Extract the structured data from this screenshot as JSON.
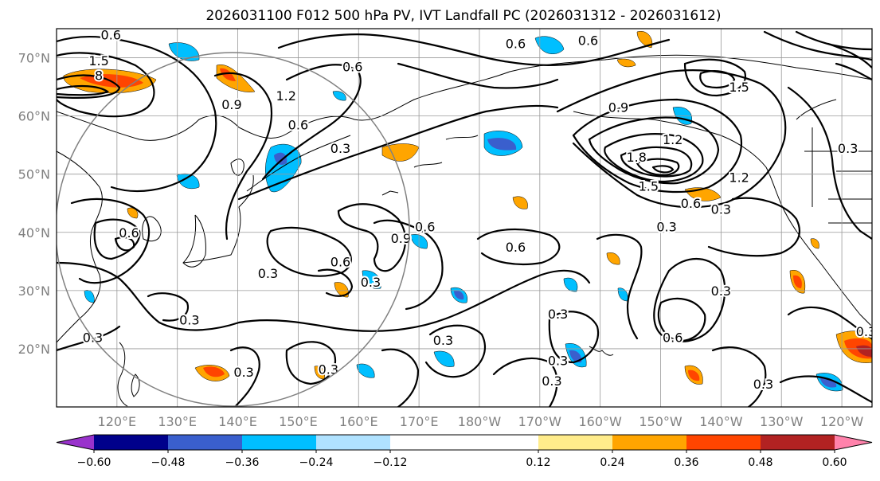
{
  "chart_data": {
    "type": "contour-map",
    "title": "2026031100 F012 500 hPa PV, IVT Landfall PC (2026031312 - 2026031612)",
    "lat_ticks": [
      "70°N",
      "60°N",
      "50°N",
      "40°N",
      "30°N",
      "20°N"
    ],
    "lat_values": [
      70,
      60,
      50,
      40,
      30,
      20
    ],
    "lon_ticks": [
      "120°E",
      "130°E",
      "140°E",
      "150°E",
      "160°E",
      "170°E",
      "180°W",
      "170°W",
      "160°W",
      "150°W",
      "140°W",
      "130°W",
      "120°W"
    ],
    "lon_values": [
      120,
      130,
      140,
      150,
      160,
      170,
      180,
      190,
      200,
      210,
      220,
      230,
      240
    ],
    "extent": {
      "lon": [
        110,
        245
      ],
      "lat": [
        10,
        75
      ]
    },
    "colorbar": {
      "ticks": [
        "−0.60",
        "−0.48",
        "−0.36",
        "−0.24",
        "−0.12",
        "0.12",
        "0.24",
        "0.36",
        "0.48",
        "0.60"
      ],
      "boundaries": [
        -0.6,
        -0.48,
        -0.36,
        -0.24,
        -0.12,
        0.12,
        0.24,
        0.36,
        0.48,
        0.6
      ],
      "colors": [
        "#9932cc",
        "#00008b",
        "#3a5fcd",
        "#00bfff",
        "#b0e2ff",
        "#ffffff",
        "#ffec8b",
        "#ffa500",
        "#ff4500",
        "#b22222",
        "#ff82ab"
      ],
      "extend": "both"
    },
    "contour_labels": [
      {
        "text": "0.6",
        "lon": 119,
        "lat": 74
      },
      {
        "text": "1.5",
        "lon": 117,
        "lat": 69.5
      },
      {
        "text": "8",
        "lon": 117,
        "lat": 67
      },
      {
        "text": "0.9",
        "lon": 139,
        "lat": 62
      },
      {
        "text": "1.2",
        "lon": 148,
        "lat": 63.5
      },
      {
        "text": "0.6",
        "lon": 150,
        "lat": 58.5
      },
      {
        "text": "0.3",
        "lon": 157,
        "lat": 54.5
      },
      {
        "text": "0.6",
        "lon": 159,
        "lat": 68.5
      },
      {
        "text": "0.6",
        "lon": 186,
        "lat": 72.5
      },
      {
        "text": "0.6",
        "lon": 198,
        "lat": 73
      },
      {
        "text": "0.9",
        "lon": 203,
        "lat": 61.5
      },
      {
        "text": "1.8",
        "lon": 206,
        "lat": 53
      },
      {
        "text": "1.2",
        "lon": 212,
        "lat": 56
      },
      {
        "text": "1.5",
        "lon": 208,
        "lat": 48
      },
      {
        "text": "1.2",
        "lon": 223,
        "lat": 49.5
      },
      {
        "text": "0.6",
        "lon": 215,
        "lat": 45
      },
      {
        "text": "0.3",
        "lon": 220,
        "lat": 44
      },
      {
        "text": "0.3",
        "lon": 211,
        "lat": 41
      },
      {
        "text": "1.5",
        "lon": 223,
        "lat": 65
      },
      {
        "text": "0.3",
        "lon": 241,
        "lat": 54.5
      },
      {
        "text": "0.6",
        "lon": 122,
        "lat": 40
      },
      {
        "text": "0.9",
        "lon": 167,
        "lat": 39
      },
      {
        "text": "0.6",
        "lon": 171,
        "lat": 41
      },
      {
        "text": "0.6",
        "lon": 157,
        "lat": 35
      },
      {
        "text": "0.6",
        "lon": 186,
        "lat": 37.5
      },
      {
        "text": "0.3",
        "lon": 145,
        "lat": 33
      },
      {
        "text": "0.3",
        "lon": 162,
        "lat": 31.5
      },
      {
        "text": "0.3",
        "lon": 132,
        "lat": 25
      },
      {
        "text": "0.3",
        "lon": 116,
        "lat": 22
      },
      {
        "text": "0.3",
        "lon": 174,
        "lat": 21.5
      },
      {
        "text": "0.3",
        "lon": 192,
        "lat": 14.5
      },
      {
        "text": "0.3",
        "lon": 141,
        "lat": 16
      },
      {
        "text": "0.3",
        "lon": 155,
        "lat": 16.5
      },
      {
        "text": "0.3",
        "lon": 193,
        "lat": 26
      },
      {
        "text": "0.3",
        "lon": 193,
        "lat": 18
      },
      {
        "text": "0.6",
        "lon": 212,
        "lat": 22
      },
      {
        "text": "0.3",
        "lon": 220,
        "lat": 30
      },
      {
        "text": "0.3",
        "lon": 227,
        "lat": 14
      },
      {
        "text": "0.3",
        "lon": 244,
        "lat": 23
      }
    ]
  }
}
